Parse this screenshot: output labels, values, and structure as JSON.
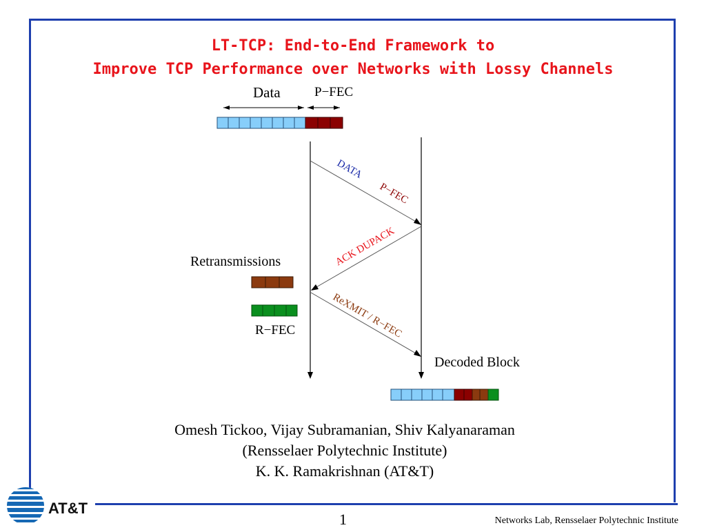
{
  "slide": {
    "title_line1": "LT-TCP: End-to-End Framework to",
    "title_line2": "Improve TCP Performance over Networks with Lossy Channels",
    "authors_line1": "Omesh Tickoo, Vijay Subramanian, Shiv Kalyanaraman",
    "authors_line2": "(Rensselaer Polytechnic Institute)",
    "authors_line3": "K. K. Ramakrishnan (AT&T)",
    "page_number": "1",
    "footer": "Networks Lab, Rensselaer Polytechnic Institute"
  },
  "diagram": {
    "label_data": "Data",
    "label_pfec": "P−FEC",
    "arrow_data_pfec": "DATA",
    "arrow_pfec": "P−FEC",
    "arrow_ack_dupack": "ACK  DUPACK",
    "label_retransmissions": "Retransmissions",
    "label_rfec": "R−FEC",
    "arrow_rexmit": "ReXMIT / R−FEC",
    "label_decoded_block": "Decoded Block"
  },
  "logo": {
    "text": "AT&T"
  },
  "colors": {
    "title": "#e8141b",
    "border": "#1e3fae",
    "data_block": "#87cefa",
    "pfec_block": "#8b0000",
    "retx_block": "#8b3a0f",
    "rfec_block": "#0a8f1e",
    "arrow_data_text": "#1a2aa8",
    "arrow_pfec_text": "#8b0000",
    "arrow_ack_text": "#e8141b",
    "arrow_rexmit_text": "#8b3a0f"
  }
}
